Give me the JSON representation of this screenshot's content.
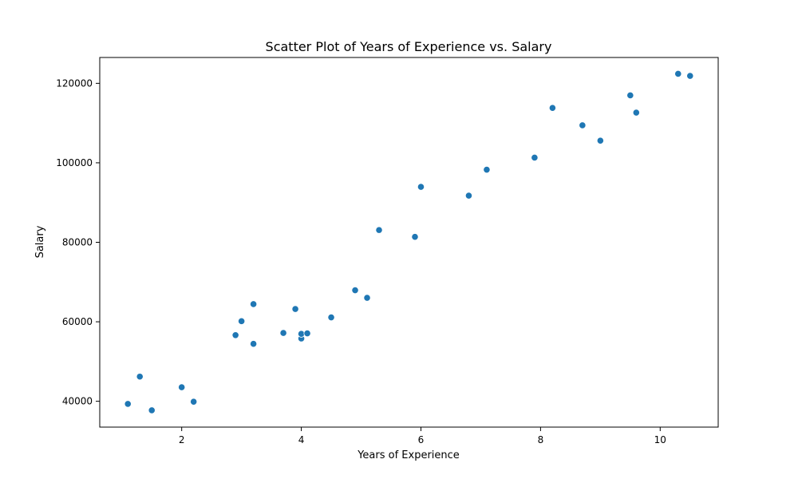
{
  "chart_data": {
    "type": "scatter",
    "title": "Scatter Plot of Years of Experience vs. Salary",
    "xlabel": "Years of Experience",
    "ylabel": "Salary",
    "xlim": [
      0.63,
      10.97
    ],
    "ylim": [
      33500,
      126500
    ],
    "x_ticks": [
      2,
      4,
      6,
      8,
      10
    ],
    "y_ticks": [
      40000,
      60000,
      80000,
      100000,
      120000
    ],
    "grid": false,
    "marker_color": "#1f77b4",
    "marker_edge_color": "#ffffff",
    "series": [
      {
        "points": [
          {
            "x": 1.1,
            "y": 39343
          },
          {
            "x": 1.3,
            "y": 46205
          },
          {
            "x": 1.5,
            "y": 37731
          },
          {
            "x": 2.0,
            "y": 43525
          },
          {
            "x": 2.2,
            "y": 39891
          },
          {
            "x": 2.9,
            "y": 56642
          },
          {
            "x": 3.0,
            "y": 60150
          },
          {
            "x": 3.2,
            "y": 54445
          },
          {
            "x": 3.2,
            "y": 64445
          },
          {
            "x": 3.7,
            "y": 57189
          },
          {
            "x": 3.9,
            "y": 63218
          },
          {
            "x": 4.0,
            "y": 55794
          },
          {
            "x": 4.0,
            "y": 56957
          },
          {
            "x": 4.1,
            "y": 57081
          },
          {
            "x": 4.5,
            "y": 61111
          },
          {
            "x": 4.9,
            "y": 67938
          },
          {
            "x": 5.1,
            "y": 66029
          },
          {
            "x": 5.3,
            "y": 83088
          },
          {
            "x": 5.9,
            "y": 81363
          },
          {
            "x": 6.0,
            "y": 93940
          },
          {
            "x": 6.8,
            "y": 91738
          },
          {
            "x": 7.1,
            "y": 98273
          },
          {
            "x": 7.9,
            "y": 101302
          },
          {
            "x": 8.2,
            "y": 113812
          },
          {
            "x": 8.7,
            "y": 109431
          },
          {
            "x": 9.0,
            "y": 105582
          },
          {
            "x": 9.5,
            "y": 116969
          },
          {
            "x": 9.6,
            "y": 112635
          },
          {
            "x": 10.3,
            "y": 122391
          },
          {
            "x": 10.5,
            "y": 121872
          }
        ]
      }
    ]
  }
}
